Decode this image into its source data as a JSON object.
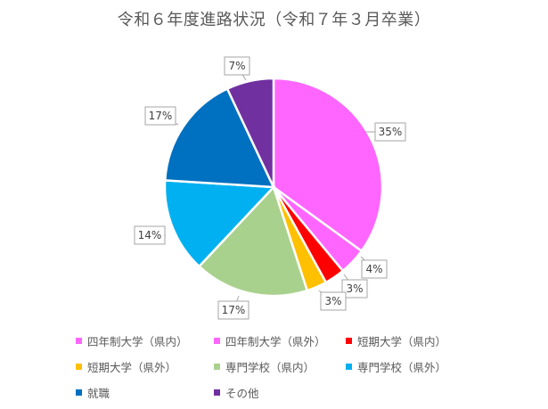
{
  "chart_data": {
    "type": "pie",
    "title": "令和６年度進路状況（令和７年３月卒業）",
    "slices": [
      {
        "name": "四年制大学（県内）",
        "value": 35,
        "label": "35%",
        "color": "#FF66FF"
      },
      {
        "name": "四年制大学（県外）",
        "value": 4,
        "label": "4%",
        "color": "#FF66FF"
      },
      {
        "name": "短期大学（県内）",
        "value": 3,
        "label": "3%",
        "color": "#FF0000"
      },
      {
        "name": "短期大学（県外）",
        "value": 3,
        "label": "3%",
        "color": "#FFC000"
      },
      {
        "name": "専門学校（県内）",
        "value": 17,
        "label": "17%",
        "color": "#A9D18E"
      },
      {
        "name": "専門学校（県外）",
        "value": 14,
        "label": "14%",
        "color": "#00B0F0"
      },
      {
        "name": "就職",
        "value": 17,
        "label": "17%",
        "color": "#0070C0"
      },
      {
        "name": "その他",
        "value": 7,
        "label": "7%",
        "color": "#7030A0"
      }
    ],
    "legend_position": "bottom"
  }
}
